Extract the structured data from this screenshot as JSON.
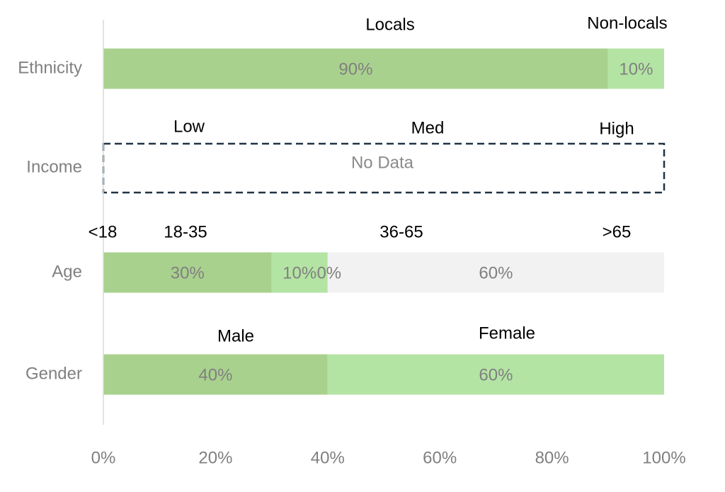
{
  "chart_data": {
    "type": "bar",
    "orientation": "horizontal-stacked-100",
    "xlim": [
      0,
      100
    ],
    "x_ticks": [
      "0%",
      "20%",
      "40%",
      "60%",
      "80%",
      "100%"
    ],
    "grid": false,
    "legend": "none",
    "rows": [
      {
        "category": "Ethnicity",
        "segments": [
          {
            "name": "Locals",
            "value": 90,
            "label": "90%",
            "color": "#a9d18e"
          },
          {
            "name": "Non-locals",
            "value": 10,
            "label": "10%",
            "color": "#b4e4a4"
          }
        ]
      },
      {
        "category": "Income",
        "no_data": true,
        "no_data_label": "No Data",
        "group_labels": [
          "Low",
          "Med",
          "High"
        ]
      },
      {
        "category": "Age",
        "segments": [
          {
            "name": "<18",
            "value": 0,
            "label": "",
            "color": "#a9d18e"
          },
          {
            "name": "18-35",
            "value": 30,
            "label": "30%",
            "color": "#a9d18e"
          },
          {
            "name": "36-65",
            "value": 10,
            "label": "10%",
            "color": "#b4e4a4"
          },
          {
            "name": ">65",
            "value": 0,
            "label": "0%",
            "color": "#a9d18e"
          },
          {
            "name": "",
            "value": 60,
            "label": "60%",
            "color": "#f2f2f2"
          }
        ]
      },
      {
        "category": "Gender",
        "segments": [
          {
            "name": "Male",
            "value": 40,
            "label": "40%",
            "color": "#a9d18e"
          },
          {
            "name": "Female",
            "value": 60,
            "label": "60%",
            "color": "#b4e4a4"
          }
        ]
      }
    ]
  }
}
